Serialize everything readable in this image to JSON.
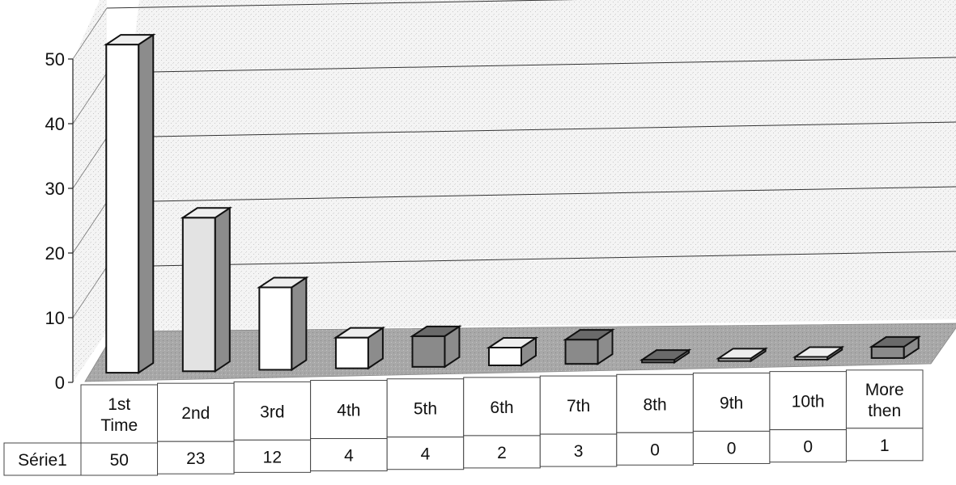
{
  "chart_data": {
    "type": "bar",
    "style": "3d-column-with-data-table",
    "categories": [
      "1st Time",
      "2nd",
      "3rd",
      "4th",
      "5th",
      "6th",
      "7th",
      "8th",
      "9th",
      "10th",
      "More then"
    ],
    "series": [
      {
        "name": "Série1",
        "values": [
          50,
          23,
          12,
          4,
          4,
          2,
          3,
          0,
          0,
          0,
          1
        ]
      }
    ],
    "y_ticks": [
      0,
      10,
      20,
      30,
      40,
      50
    ],
    "ylim": [
      0,
      50
    ],
    "title": "",
    "xlabel": "",
    "ylabel": "",
    "grid": true,
    "legend": "none",
    "data_table": true,
    "colors": {
      "bar_face_light": "#ffffff",
      "bar_face_grey": "#e3e3e3",
      "bar_face_dark": "#8a8a8a",
      "bar_side": "#8c8c8c",
      "bar_top": "#eeeeee",
      "wall": "#f3f3f3",
      "floor": "#a9a9a9",
      "grid": "#333333",
      "outline": "#111111"
    },
    "bar_shades": [
      "light",
      "grey",
      "light",
      "light",
      "dark",
      "light",
      "dark",
      "dark",
      "light",
      "light",
      "dark"
    ]
  }
}
